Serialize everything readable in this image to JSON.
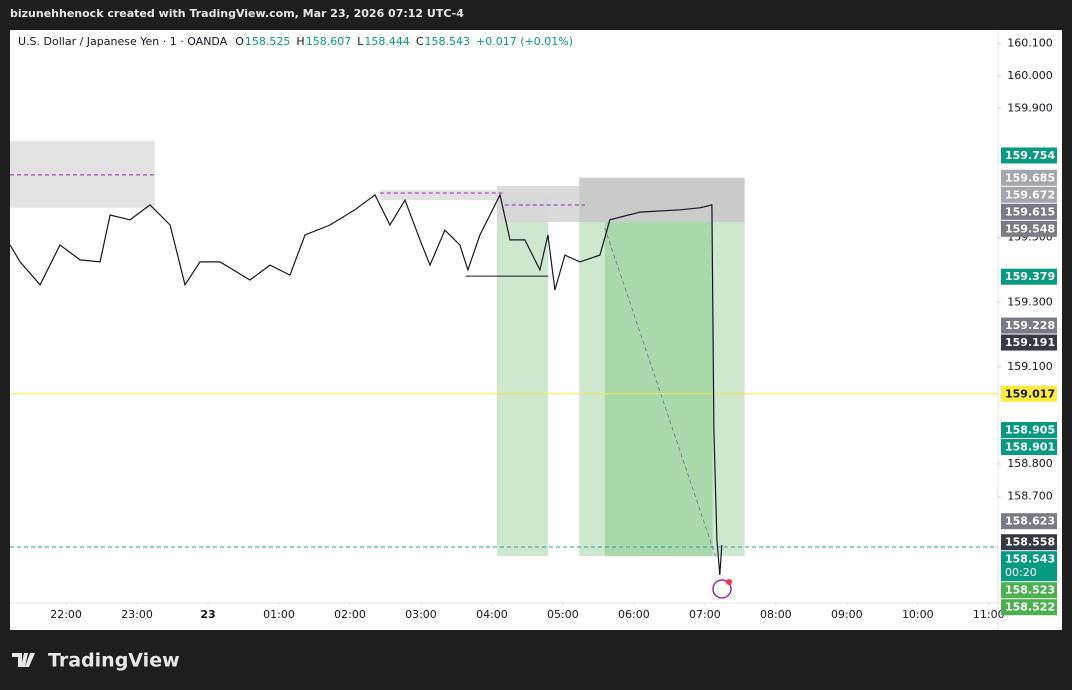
{
  "chart_data": {
    "type": "line",
    "header": "bizunehhenock created with TradingView.com, Mar 23, 2026 07:12 UTC-4",
    "symbol": "U.S. Dollar / Japanese Yen · 1 · OANDA",
    "ohlc": [
      {
        "label": "O",
        "value": 158.525
      },
      {
        "label": "H",
        "value": 158.607
      },
      {
        "label": "L",
        "value": 158.444
      },
      {
        "label": "C",
        "value": 158.543
      }
    ],
    "change": "+0.017 (+0.01%)",
    "brand": "TradingView",
    "xlim": [
      21.21,
      35.13
    ],
    "ylim": [
      158.37,
      160.142
    ],
    "xticks": [
      {
        "value": 22,
        "label": "22:00"
      },
      {
        "value": 23,
        "label": "23:00"
      },
      {
        "value": 24,
        "label": "23"
      },
      {
        "value": 25,
        "label": "01:00"
      },
      {
        "value": 26,
        "label": "02:00"
      },
      {
        "value": 27,
        "label": "03:00"
      },
      {
        "value": 28,
        "label": "04:00"
      },
      {
        "value": 29,
        "label": "05:00"
      },
      {
        "value": 30,
        "label": "06:00"
      },
      {
        "value": 31,
        "label": "07:00"
      },
      {
        "value": 32,
        "label": "08:00"
      },
      {
        "value": 33,
        "label": "09:00"
      },
      {
        "value": 34,
        "label": "10:00"
      },
      {
        "value": 35,
        "label": "11:00"
      }
    ],
    "yticks": [
      {
        "value": 160.1,
        "label": "160.100"
      },
      {
        "value": 160,
        "label": "160.000"
      },
      {
        "value": 159.9,
        "label": "159.900"
      },
      {
        "value": 159.5,
        "label": "159.500"
      },
      {
        "value": 159.3,
        "label": "159.300"
      },
      {
        "value": 159.1,
        "label": "159.100"
      },
      {
        "value": 158.8,
        "label": "158.800"
      },
      {
        "value": 158.7,
        "label": "158.700"
      }
    ],
    "series": [
      {
        "color": "#131722",
        "x": [
          21.211,
          21.352,
          21.634,
          21.915,
          22.197,
          22.479,
          22.62,
          22.901,
          23.183,
          23.465,
          23.676,
          23.887,
          24.169,
          24.592,
          24.873,
          25.155,
          25.366,
          25.718,
          26.07,
          26.352,
          26.563,
          26.775,
          26.986,
          27.127,
          27.338,
          27.549,
          27.662,
          27.831,
          28.113,
          28.254,
          28.465,
          28.676,
          28.789,
          28.887,
          29.028,
          29.239,
          29.521,
          29.662,
          30.085,
          30.648,
          30.93,
          31.099,
          31.127,
          31.169,
          31.211,
          31.239
        ],
        "values": [
          159.477,
          159.425,
          159.354,
          159.477,
          159.431,
          159.425,
          159.57,
          159.555,
          159.601,
          159.539,
          159.354,
          159.425,
          159.425,
          159.369,
          159.415,
          159.384,
          159.508,
          159.539,
          159.586,
          159.632,
          159.539,
          159.616,
          159.493,
          159.415,
          159.523,
          159.477,
          159.4,
          159.508,
          159.632,
          159.493,
          159.493,
          159.4,
          159.508,
          159.338,
          159.446,
          159.425,
          159.446,
          159.555,
          159.579,
          159.586,
          159.592,
          159.601,
          158.905,
          158.565,
          158.457,
          158.549
        ]
      }
    ],
    "shapes": [
      {
        "kind": "rect",
        "x": [
          21.21,
          23.25
        ],
        "y": [
          159.799,
          159.592
        ],
        "fill": "#e0e0e0"
      },
      {
        "kind": "rect",
        "x": [
          26.42,
          28.18
        ],
        "y": [
          159.647,
          159.616
        ],
        "fill": "#e0e0e0"
      },
      {
        "kind": "rect",
        "x": [
          28.07,
          28.79
        ],
        "y": [
          159.623,
          158.515
        ],
        "fill": "#c8e6c9"
      },
      {
        "kind": "rect",
        "x": [
          28.07,
          29.31
        ],
        "y": [
          159.66,
          159.548
        ],
        "fill": "#d6d6d6"
      },
      {
        "kind": "rect",
        "x": [
          29.23,
          31.56
        ],
        "y": [
          159.685,
          158.515
        ],
        "fill": "#c8e6c9"
      },
      {
        "kind": "rect",
        "x": [
          29.59,
          31.11
        ],
        "y": [
          159.548,
          158.515
        ],
        "fill": "#a5d6a7"
      },
      {
        "kind": "rect",
        "x": [
          29.23,
          31.56
        ],
        "y": [
          159.685,
          159.548
        ],
        "fill": "#c9c9c9"
      },
      {
        "kind": "line",
        "x": [
          21.21,
          23.25
        ],
        "y": [
          159.694,
          159.694
        ],
        "stroke": "#9c27b0",
        "dash": true
      },
      {
        "kind": "line",
        "x": [
          26.42,
          28.18
        ],
        "y": [
          159.638,
          159.638
        ],
        "stroke": "#9c27b0",
        "dash": true
      },
      {
        "kind": "line",
        "x": [
          28.18,
          29.31
        ],
        "y": [
          159.601,
          159.601
        ],
        "stroke": "#9c27b0",
        "dash": true
      },
      {
        "kind": "line",
        "x": [
          27.63,
          28.79
        ],
        "y": [
          159.381,
          159.381
        ],
        "stroke": "#131722",
        "dash": false
      },
      {
        "kind": "line",
        "x": [
          29.59,
          31.15
        ],
        "y": [
          159.53,
          158.515
        ],
        "stroke": "#7e7e9a",
        "dash": true
      },
      {
        "kind": "line",
        "x": [
          21.21,
          35.13
        ],
        "y": [
          159.017,
          159.017
        ],
        "stroke": "#f5e642",
        "dash": false
      },
      {
        "kind": "line",
        "x": [
          21.21,
          35.13
        ],
        "y": [
          158.543,
          158.543
        ],
        "stroke": "#26a69a",
        "dash": true
      }
    ],
    "price_tags": [
      {
        "value": 159.754,
        "color": "#089981"
      },
      {
        "value": 159.685,
        "color": "#a3a6af"
      },
      {
        "value": 159.672,
        "color": "#a3a6af"
      },
      {
        "value": 159.615,
        "color": "#787b86"
      },
      {
        "value": 159.548,
        "color": "#787b86"
      },
      {
        "value": 159.379,
        "color": "#089981"
      },
      {
        "value": 159.228,
        "color": "#787b86"
      },
      {
        "value": 159.191,
        "color": "#363a45"
      },
      {
        "value": 159.017,
        "color": "#ffeb3b"
      },
      {
        "value": 158.905,
        "color": "#089981"
      },
      {
        "value": 158.901,
        "color": "#089981"
      },
      {
        "value": 158.623,
        "color": "#787b86"
      },
      {
        "value": 158.558,
        "color": "#363a45"
      },
      {
        "value": 158.543,
        "color": "#089981",
        "countdown": "00:20"
      },
      {
        "value": 158.523,
        "color": "#4caf50"
      },
      {
        "value": 158.522,
        "color": "#4caf50"
      }
    ]
  }
}
